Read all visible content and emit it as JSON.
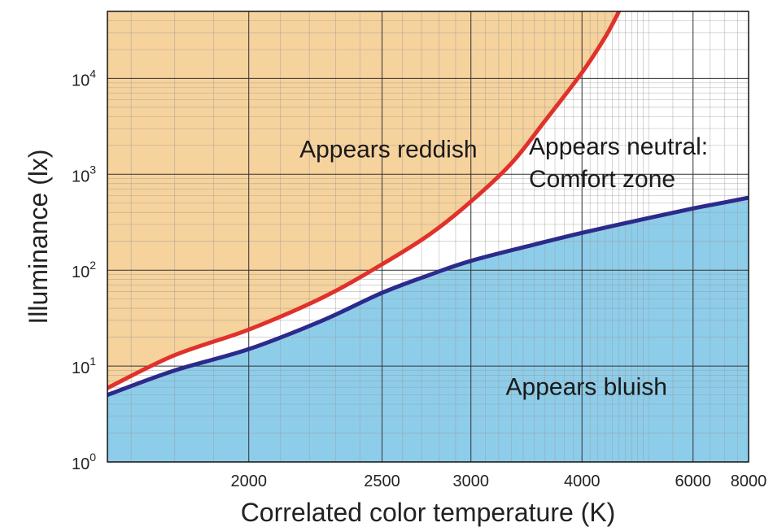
{
  "chart_data": {
    "type": "area",
    "title": "",
    "xlabel": "Correlated color temperature (K)",
    "ylabel": "Illuminance (lx)",
    "x_scale": "reciprocal",
    "y_scale": "log",
    "xlim": [
      1650,
      8000
    ],
    "ylim": [
      1,
      50000
    ],
    "x_ticks": [
      {
        "value": 2000,
        "label": "2000"
      },
      {
        "value": 2500,
        "label": "2500"
      },
      {
        "value": 3000,
        "label": "3000"
      },
      {
        "value": 4000,
        "label": "4000"
      },
      {
        "value": 6000,
        "label": "6000"
      },
      {
        "value": 8000,
        "label": "8000"
      }
    ],
    "y_ticks": [
      {
        "value": 1,
        "base": "10",
        "exp": "0"
      },
      {
        "value": 10,
        "base": "10",
        "exp": "1"
      },
      {
        "value": 100,
        "base": "10",
        "exp": "2"
      },
      {
        "value": 1000,
        "base": "10",
        "exp": "3"
      },
      {
        "value": 10000,
        "base": "10",
        "exp": "4"
      }
    ],
    "grid": true,
    "series": [
      {
        "color": "#e0312b",
        "points": [
          [
            1650,
            5.9
          ],
          [
            1800,
            13
          ],
          [
            2000,
            24
          ],
          [
            2250,
            52
          ],
          [
            2500,
            115
          ],
          [
            2750,
            240
          ],
          [
            3000,
            520
          ],
          [
            3300,
            1300
          ],
          [
            3600,
            3600
          ],
          [
            4000,
            11500
          ],
          [
            4300,
            27000
          ],
          [
            4500,
            50000
          ]
        ]
      },
      {
        "color": "#2c2a8a",
        "points": [
          [
            1650,
            5
          ],
          [
            1800,
            9
          ],
          [
            2000,
            15
          ],
          [
            2250,
            30
          ],
          [
            2500,
            58
          ],
          [
            2750,
            90
          ],
          [
            3000,
            125
          ],
          [
            3500,
            185
          ],
          [
            4000,
            245
          ],
          [
            5000,
            350
          ],
          [
            6000,
            440
          ],
          [
            7000,
            510
          ],
          [
            8000,
            570
          ]
        ]
      }
    ],
    "regions": [
      {
        "label": "Appears reddish",
        "color": "#f6d29c",
        "anchor": {
          "x": 2530,
          "y": 1500
        }
      },
      {
        "label": "Appears neutral:",
        "label2": "Comfort zone",
        "color": "#ffffff",
        "anchor": {
          "x": 4400,
          "y": 1600
        }
      },
      {
        "label": "Appears bluish",
        "color": "#8dcdea",
        "anchor": {
          "x": 4500,
          "y": 5
        }
      }
    ]
  }
}
